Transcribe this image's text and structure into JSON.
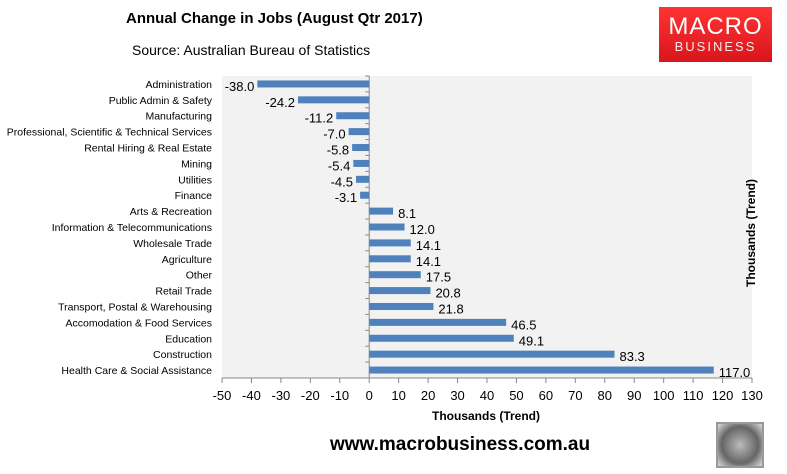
{
  "title": "Annual Change in Jobs (August Qtr 2017)",
  "source": "Source: Australian Bureau of Statistics",
  "logo": {
    "line1": "MACRO",
    "line2": "BUSINESS",
    "color": "#e8262b"
  },
  "url": "www.macrobusiness.com.au",
  "chart_data": {
    "type": "bar",
    "orientation": "horizontal",
    "categories": [
      "Administration",
      "Public Admin & Safety",
      "Manufacturing",
      "Professional, Scientific & Technical Services",
      "Rental Hiring & Real Estate",
      "Mining",
      "Utilities",
      "Finance",
      "Arts & Recreation",
      "Information & Telecommunications",
      "Wholesale Trade",
      "Agriculture",
      "Other",
      "Retail Trade",
      "Transport, Postal & Warehousing",
      "Accomodation & Food Services",
      "Education",
      "Construction",
      "Health Care & Social Assistance"
    ],
    "values": [
      -38.0,
      -24.2,
      -11.2,
      -7.0,
      -5.8,
      -5.4,
      -4.5,
      -3.1,
      8.1,
      12.0,
      14.1,
      14.1,
      17.5,
      20.8,
      21.8,
      46.5,
      49.1,
      83.3,
      117.0
    ],
    "data_labels": [
      "-38.0",
      "-24.2",
      "-11.2",
      "-7.0",
      "-5.8",
      "-5.4",
      "-4.5",
      "-3.1",
      "8.1",
      "12.0",
      "14.1",
      "14.1",
      "17.5",
      "20.8",
      "21.8",
      "46.5",
      "49.1",
      "83.3",
      "117.0"
    ],
    "xlabel": "Thousands (Trend)",
    "ylabel": "Thousands (Trend)",
    "xlim": [
      -50,
      130
    ],
    "xticks": [
      "-50",
      "-40",
      "-30",
      "-20",
      "-10",
      "0",
      "10",
      "20",
      "30",
      "40",
      "50",
      "60",
      "70",
      "80",
      "90",
      "100",
      "110",
      "120",
      "130"
    ],
    "bar_color": "#4f81bd",
    "plot_background": "#f2f2f2",
    "grid": false,
    "legend": "none"
  }
}
